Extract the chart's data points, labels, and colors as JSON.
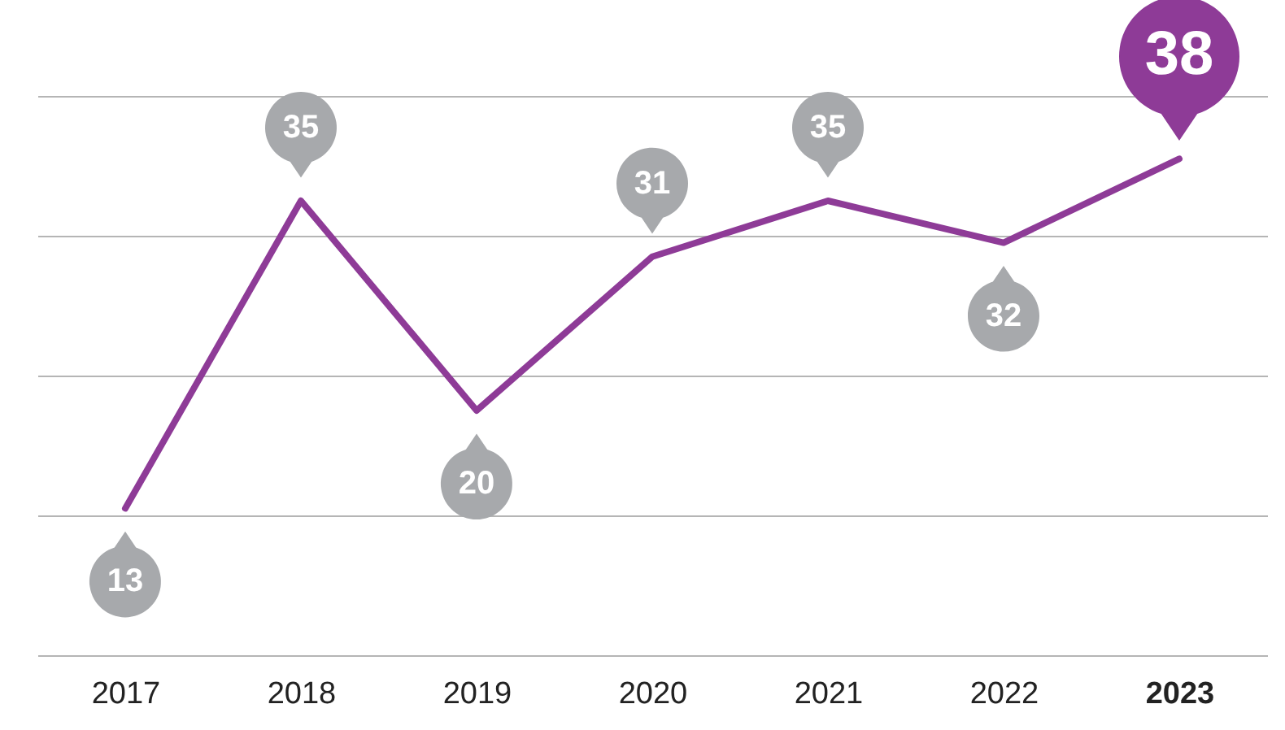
{
  "chart_data": {
    "type": "line",
    "categories": [
      "2017",
      "2018",
      "2019",
      "2020",
      "2021",
      "2022",
      "2023"
    ],
    "series": [
      {
        "color": "#8e3b97",
        "values": [
          13,
          35,
          20,
          31,
          35,
          32,
          38
        ]
      }
    ],
    "ylim": [
      2.5,
      42.5
    ],
    "yticks": [
      {
        "value": 2.5,
        "label": null
      },
      {
        "value": 12.5,
        "label": null
      },
      {
        "value": 22.5,
        "label": null
      },
      {
        "value": 32.5,
        "label": null
      },
      {
        "value": 42.5,
        "label": null
      }
    ],
    "grid": "y",
    "data_labels": true
  }
}
